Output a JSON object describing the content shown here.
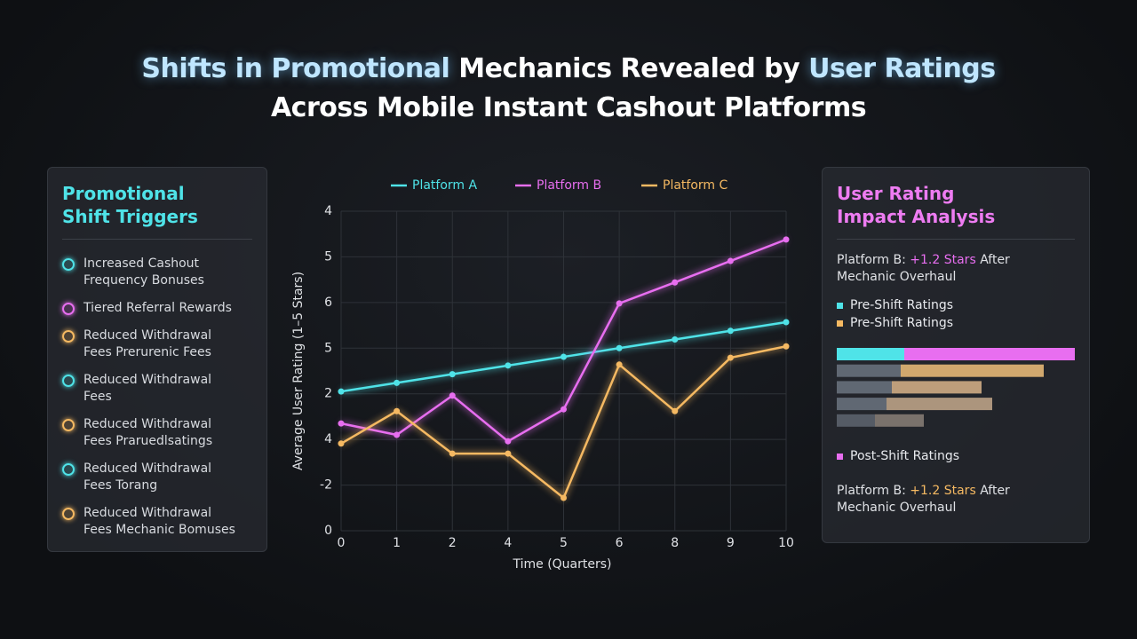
{
  "header": {
    "title_line1": [
      "Shifts in Promotional",
      "Mechanics Revealed by",
      "User Ratings"
    ],
    "title_line2": "Across Mobile Instant Cashout Platforms"
  },
  "left_panel": {
    "title": "Promotional Shift Triggers",
    "items": [
      {
        "text": "Increased Cashout Frequency Bonuses",
        "color": "#4fe3e8"
      },
      {
        "text": "Tiered Referral Rewards",
        "color": "#e86ef0"
      },
      {
        "text": "Reduced Withdrawal Fees Prerurenic Fees",
        "color": "#f5b962"
      },
      {
        "text": "Reduced Withdrawal Fees",
        "color": "#4fe3e8"
      },
      {
        "text": "Reduced Withdrawal Fees Praruedlsatings",
        "color": "#f5b962"
      },
      {
        "text": "Reduced Withdrawal Fees Torang",
        "color": "#4fe3e8"
      },
      {
        "text": "Reduced Withdrawal Fees Mechanic Bomuses",
        "color": "#f5b962"
      }
    ]
  },
  "chart_data": {
    "type": "line",
    "x_label": "Time (Quarters)",
    "y_label": "Average User Rating (1–5 Stars)",
    "categories": [
      "0",
      "1",
      "2",
      "4",
      "5",
      "6",
      "8",
      "9",
      "10"
    ],
    "ylim": [
      0,
      7
    ],
    "yticks": [
      {
        "value": 0,
        "label": "0"
      },
      {
        "value": 1,
        "label": "-2"
      },
      {
        "value": 2,
        "label": "4"
      },
      {
        "value": 3,
        "label": "2"
      },
      {
        "value": 4,
        "label": "5"
      },
      {
        "value": 5,
        "label": "6"
      },
      {
        "value": 6,
        "label": "5"
      },
      {
        "value": 7,
        "label": "4"
      }
    ],
    "grid": true,
    "series": [
      {
        "name": "Platform A",
        "color": "#4fe3e8",
        "values": [
          3.05,
          3.24,
          3.43,
          3.62,
          3.81,
          4.0,
          4.19,
          4.38,
          4.57
        ]
      },
      {
        "name": "Platform B",
        "color": "#e86ef0",
        "values": [
          2.35,
          2.1,
          2.96,
          1.96,
          2.66,
          4.98,
          5.44,
          5.91,
          6.38
        ]
      },
      {
        "name": "Platform C",
        "color": "#f5b962",
        "values": [
          1.91,
          2.62,
          1.69,
          1.69,
          0.72,
          3.64,
          2.62,
          3.79,
          4.04
        ]
      }
    ]
  },
  "right_panel": {
    "title": "User Rating Impact Analysis",
    "note_top": {
      "before": "Platform B:",
      "highlight": "+1.2 Stars",
      "after": "After Mechanic Overhaul",
      "color": "#e86ef0"
    },
    "legend": [
      {
        "name": "Pre-Shift Ratings",
        "color": "#4fe3e8"
      },
      {
        "name": "Pre-Shift Ratings",
        "color": "#f5b962"
      }
    ],
    "bars": [
      {
        "values": [
          76,
          192
        ],
        "colors": [
          "#4fe3e8",
          "#e86ef0"
        ]
      },
      {
        "values": [
          72,
          161
        ],
        "colors": [
          "#6b7480",
          "#f0c07a"
        ]
      },
      {
        "values": [
          62,
          101
        ],
        "colors": [
          "#6b7480",
          "#d9b48a"
        ]
      },
      {
        "values": [
          56,
          119
        ],
        "colors": [
          "#6b7480",
          "#c4a98c"
        ]
      },
      {
        "values": [
          43,
          55
        ],
        "colors": [
          "#5e6570",
          "#8a8078"
        ]
      }
    ],
    "legend_bottom": {
      "name": "Post-Shift Ratings",
      "color": "#e86ef0"
    },
    "note_bottom": {
      "before": "Platform B:",
      "highlight": "+1.2 Stars",
      "after": "After Mechanic Overhaul",
      "color": "#f5b962"
    }
  }
}
